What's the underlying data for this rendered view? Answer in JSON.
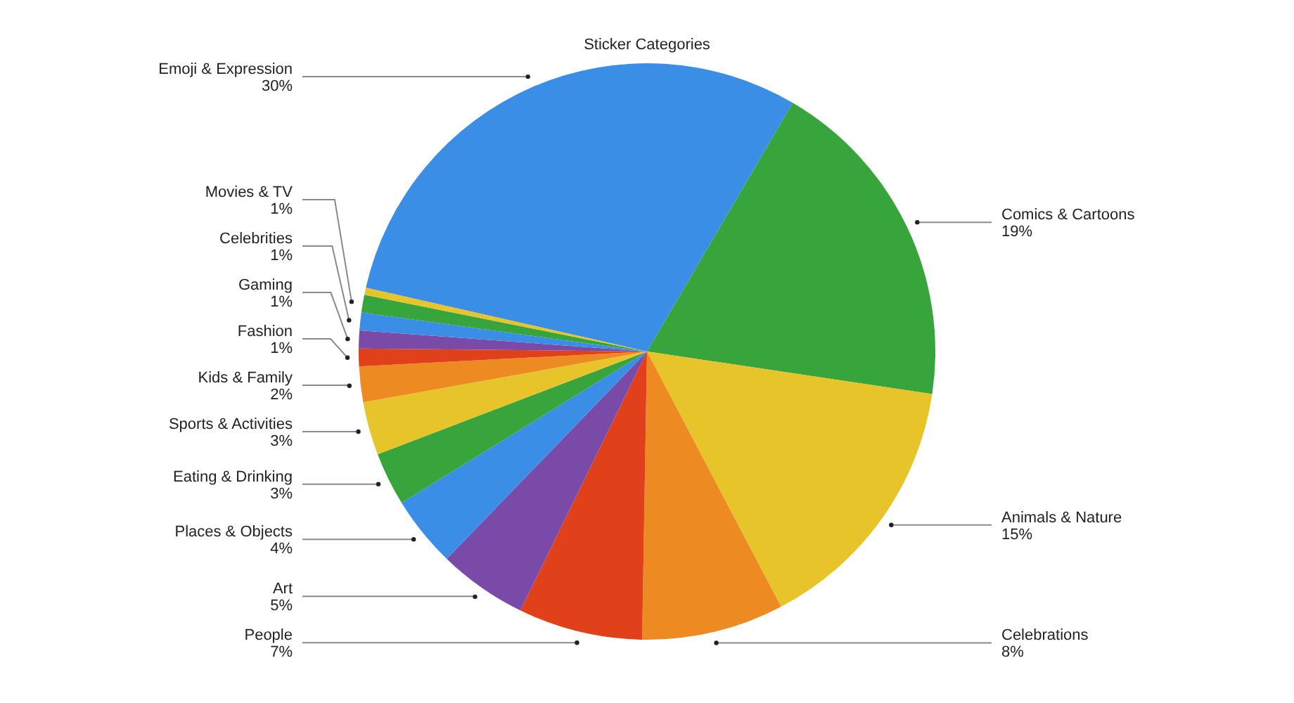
{
  "chart_data": {
    "type": "pie",
    "title": "Sticker Categories",
    "categories": [
      "Emoji & Expression",
      "Comics & Cartoons",
      "Animals & Nature",
      "Celebrations",
      "People",
      "Art",
      "Places & Objects",
      "Eating & Drinking",
      "Sports & Activities",
      "Kids & Family",
      "Fashion",
      "Gaming",
      "Celebrities",
      "Movies & TV",
      null
    ],
    "values": [
      30,
      19,
      15,
      8,
      7,
      5,
      4,
      3,
      3,
      2,
      1,
      1,
      1,
      1,
      0.4
    ],
    "colors": [
      "#3a8ee6",
      "#38a53c",
      "#e6c42a",
      "#ee8a22",
      "#e0401a",
      "#7a4aa8",
      "#3a8ee6",
      "#38a53c",
      "#e6c42a",
      "#ee8a22",
      "#e0401a",
      "#7a4aa8",
      "#3a8ee6",
      "#38a53c",
      "#e6c42a"
    ],
    "value_labels": [
      "30%",
      "19%",
      "15%",
      "8%",
      "7%",
      "5%",
      "4%",
      "3%",
      "3%",
      "2%",
      "1%",
      "1%",
      "1%",
      "1%",
      null
    ]
  }
}
